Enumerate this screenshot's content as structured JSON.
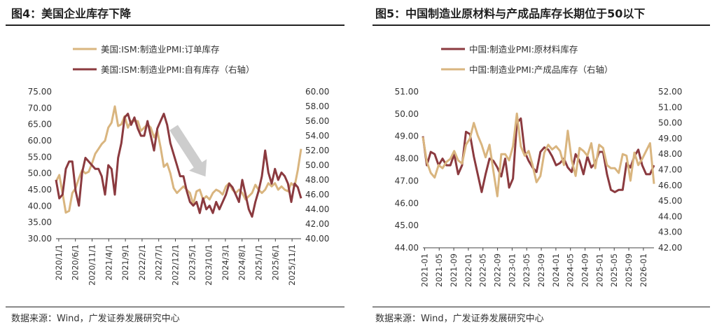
{
  "left_panel": {
    "title": "图4：美国企业库存下降",
    "source": "数据来源：Wind，广发证券发展研究中心"
  },
  "right_panel": {
    "title": "图5：中国制造业原材料与产成品库存长期位于50以下",
    "source": "数据来源：Wind，广发证券发展研究中心"
  },
  "colors": {
    "tan": "#d9b57f",
    "maroon": "#8b3a3f",
    "arrow": "#c8c8c8"
  },
  "chart_data": [
    {
      "type": "line",
      "legend_position": "top",
      "grid": false,
      "left_axis": {
        "ylim": [
          30,
          75
        ],
        "ticks": [
          "30.00",
          "35.00",
          "40.00",
          "45.00",
          "50.00",
          "55.00",
          "60.00",
          "65.00",
          "70.00",
          "75.00"
        ]
      },
      "right_axis": {
        "ylim": [
          40,
          60
        ],
        "ticks": [
          "40.00",
          "42.00",
          "44.00",
          "46.00",
          "48.00",
          "50.00",
          "52.00",
          "54.00",
          "56.00",
          "58.00",
          "60.00"
        ]
      },
      "x_ticks": [
        "2020/1/1",
        "2020/6/1",
        "2020/11/1",
        "2021/4/1",
        "2021/9/1",
        "2022/2/1",
        "2022/7/1",
        "2022/12/1",
        "2023/5/1",
        "2023/10/1",
        "2024/3/1",
        "2024/8/1",
        "2025/1/1",
        "2025/6/1",
        "2025/11/1"
      ],
      "x_range": [
        "2020-01",
        "2026-01"
      ],
      "annotation": "downward-arrow",
      "series": [
        {
          "name": "美国:ISM:制造业PMI:订单库存",
          "axis": "left",
          "color": "#d9b57f",
          "values": [
            47.5,
            49.5,
            44,
            38,
            38.5,
            44,
            45.5,
            48.5,
            51,
            50,
            50.5,
            53,
            56,
            57.5,
            59,
            60,
            64,
            65.5,
            70.5,
            64.5,
            65,
            67.5,
            64,
            66,
            66,
            66,
            63,
            64,
            65,
            64,
            61,
            63,
            58,
            52,
            53,
            50,
            45.5,
            44,
            45,
            46,
            45,
            44,
            40.5,
            44.5,
            45,
            42,
            43,
            42,
            44,
            45,
            44.5,
            43.5,
            46,
            47,
            45,
            44,
            45,
            44,
            42,
            43,
            44,
            46.5,
            45,
            44,
            45,
            47,
            46,
            47,
            45,
            46,
            45,
            44.5,
            47,
            46,
            51,
            57.5
          ]
        },
        {
          "name": "美国:ISM:制造业PMI:自有库存（右轴）",
          "axis": "right",
          "color": "#8b3a3f",
          "values": [
            48,
            45.5,
            46,
            49.5,
            50.5,
            50.5,
            46.5,
            44.5,
            49,
            51,
            50.5,
            50,
            49.5,
            49.5,
            48.5,
            46,
            50,
            49.5,
            46,
            51,
            53,
            56.5,
            57,
            55.5,
            56.5,
            55,
            54,
            54,
            56,
            54,
            52,
            55,
            56,
            57,
            55.5,
            53,
            51.5,
            50,
            48.5,
            48.5,
            46.5,
            45,
            44.5,
            45,
            43.5,
            45.5,
            44,
            44.5,
            43.5,
            45,
            44,
            45,
            46,
            47.5,
            47,
            46,
            45,
            48,
            46,
            44,
            43,
            45,
            46.5,
            48.5,
            52,
            49,
            47.5,
            49.5,
            48,
            49,
            48.5,
            47.5,
            45,
            47.5,
            47,
            45.5
          ]
        }
      ]
    },
    {
      "type": "line",
      "legend_position": "top",
      "grid": false,
      "left_axis": {
        "ylim": [
          44,
          51
        ],
        "ticks": [
          "44.00",
          "45.00",
          "46.00",
          "47.00",
          "48.00",
          "49.00",
          "50.00",
          "51.00"
        ]
      },
      "right_axis": {
        "ylim": [
          42,
          52
        ],
        "ticks": [
          "42.00",
          "43.00",
          "44.00",
          "45.00",
          "46.00",
          "47.00",
          "48.00",
          "49.00",
          "50.00",
          "51.00",
          "52.00"
        ]
      },
      "x_ticks": [
        "2021-01",
        "2021-05",
        "2021-09",
        "2022-01",
        "2022-05",
        "2022-09",
        "2023-01",
        "2023-05",
        "2023-09",
        "2024-01",
        "2024-05",
        "2024-09",
        "2025-01",
        "2025-05",
        "2025-09",
        "2026-01"
      ],
      "x_range": [
        "2021-01",
        "2026-01"
      ],
      "series": [
        {
          "name": "中国:制造业PMI:原材料库存",
          "axis": "left",
          "color": "#8b3a3f",
          "values": [
            49,
            47.7,
            48.3,
            48.2,
            47.7,
            48,
            47.7,
            47.7,
            48.2,
            47.3,
            47.7,
            49.2,
            49.1,
            48.1,
            47.3,
            46.5,
            47.3,
            48,
            47.9,
            47.6,
            47.2,
            48,
            46.7,
            47.1,
            49.6,
            49.8,
            48.3,
            47.9,
            47.6,
            47.4,
            48.3,
            48.5,
            48.4,
            48.1,
            47.7,
            47.8,
            48,
            47.6,
            47.4,
            48.2,
            47.9,
            47.3,
            48.1,
            47.6,
            47.8,
            48.3,
            48.3,
            47.3,
            46.6,
            46.5,
            46.6,
            46.6,
            47.8,
            47.6,
            48.1,
            48.4,
            47.7,
            47.3,
            47.3,
            47.7
          ]
        },
        {
          "name": "中国:制造业PMI:产成品库存（右轴）",
          "axis": "right",
          "color": "#d9b57f",
          "values": [
            49.1,
            47.5,
            46.8,
            46.5,
            47.3,
            47.1,
            47.5,
            47.7,
            48.2,
            47.6,
            47.4,
            48.6,
            49,
            50,
            49.2,
            48.6,
            47.8,
            48.6,
            46.9,
            45.3,
            48,
            48,
            47.6,
            48.5,
            50.6,
            48.5,
            47.9,
            48.2,
            47.3,
            46.2,
            46.6,
            48.1,
            48.6,
            48.3,
            48.5,
            48.2,
            47.3,
            49.5,
            47.6,
            46.6,
            48.4,
            48.2,
            47.9,
            48.7,
            47.1,
            48.6,
            48.4,
            47.3,
            47.1,
            47.1,
            46.8,
            48,
            47.9,
            46.3,
            48.1,
            47.3,
            47.7,
            48.2,
            48.7,
            46.1
          ]
        }
      ]
    }
  ]
}
